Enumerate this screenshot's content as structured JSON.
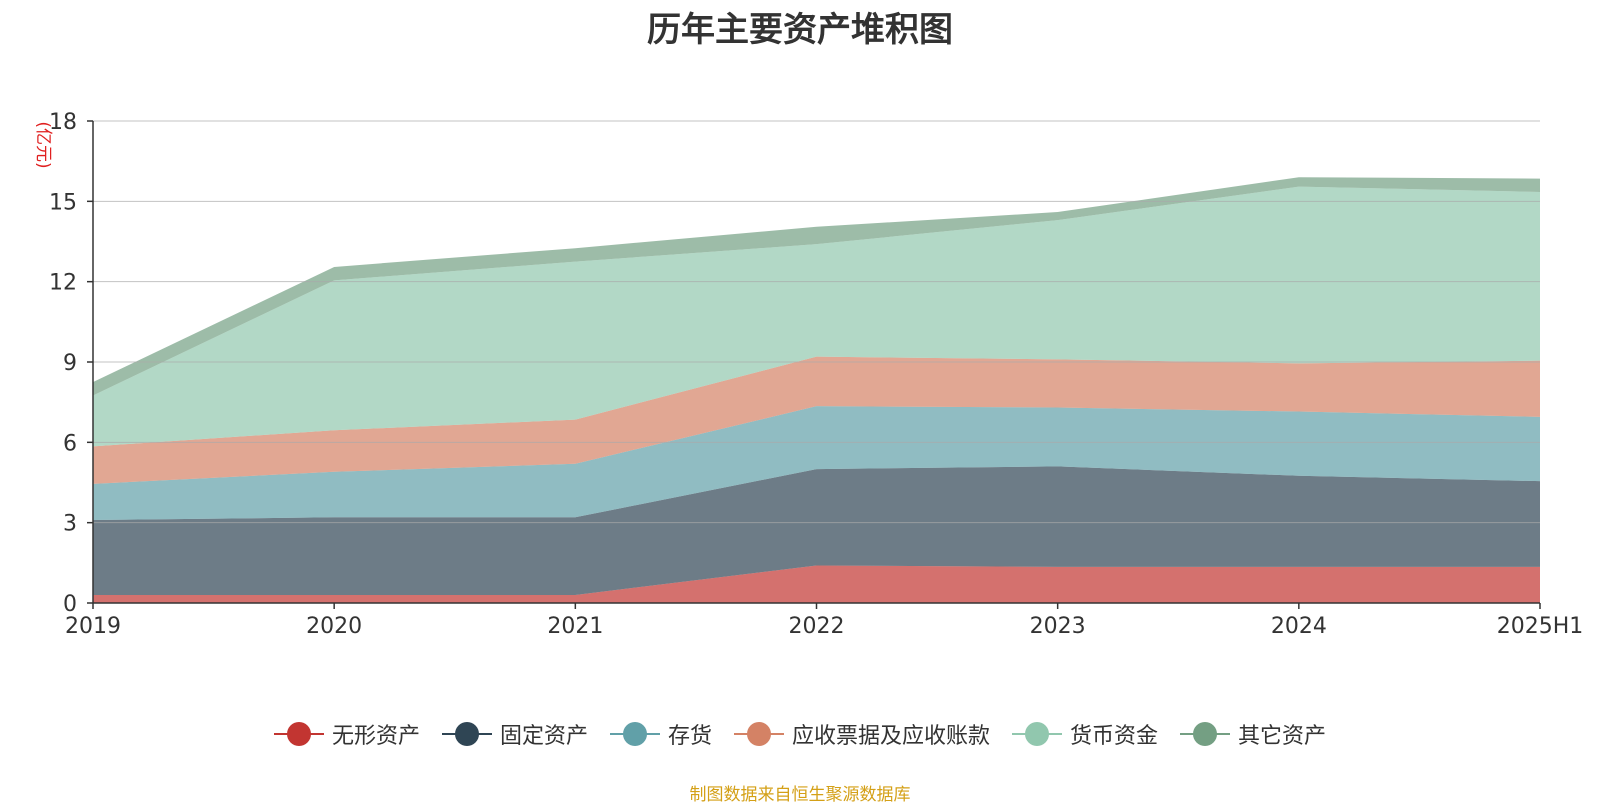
{
  "chart_data": {
    "type": "area",
    "stacked": true,
    "title": "历年主要资产堆积图",
    "ylabel": "(亿元)",
    "categories": [
      "2019",
      "2020",
      "2021",
      "2022",
      "2023",
      "2024",
      "2025H1"
    ],
    "ylim": [
      0,
      18
    ],
    "yticks": [
      0,
      3,
      6,
      9,
      12,
      15,
      18
    ],
    "grid": true,
    "legend_position": "bottom",
    "series": [
      {
        "name": "无形资产",
        "color": "#c23531",
        "values": [
          0.3,
          0.3,
          0.3,
          1.4,
          1.35,
          1.35,
          1.35
        ]
      },
      {
        "name": "固定资产",
        "color": "#2f4554",
        "values": [
          2.8,
          2.9,
          2.9,
          3.6,
          3.75,
          3.4,
          3.2
        ]
      },
      {
        "name": "存货",
        "color": "#61a0a8",
        "values": [
          1.35,
          1.7,
          2.0,
          2.35,
          2.2,
          2.4,
          2.4
        ]
      },
      {
        "name": "应收票据及应收账款",
        "color": "#d48265",
        "values": [
          1.4,
          1.55,
          1.65,
          1.85,
          1.8,
          1.8,
          2.1
        ]
      },
      {
        "name": "货币资金",
        "color": "#91c7ae",
        "values": [
          1.9,
          5.6,
          5.9,
          4.2,
          5.2,
          6.6,
          6.3
        ]
      },
      {
        "name": "其它资产",
        "color": "#749f83",
        "values": [
          0.5,
          0.5,
          0.5,
          0.65,
          0.3,
          0.35,
          0.5
        ]
      }
    ]
  },
  "source_note": "制图数据来自恒生聚源数据库"
}
